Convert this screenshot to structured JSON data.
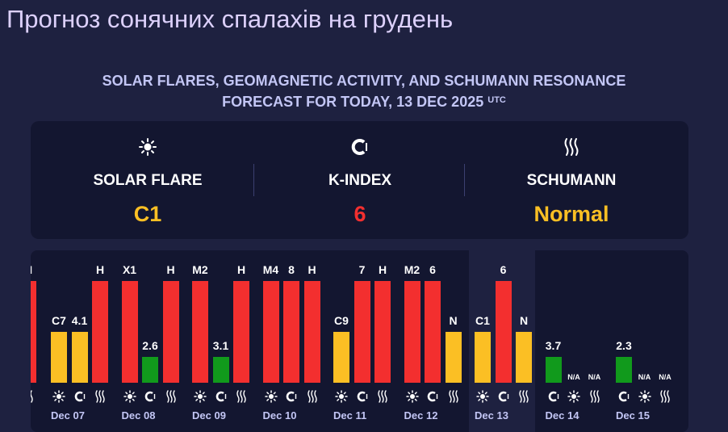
{
  "page": {
    "title": "Прогноз сонячних спалахів на грудень",
    "subtitle_line1": "SOLAR FLARES, GEOMAGNETIC ACTIVITY, AND SCHUMANN RESONANCE",
    "subtitle_line2": "FORECAST FOR TODAY, 13 DEC 2025",
    "subtitle_tz": "UTC"
  },
  "summary": {
    "solar": {
      "icon": "sun-icon",
      "label": "SOLAR FLARE",
      "value": "C1",
      "color": "#fbbf24"
    },
    "kindex": {
      "icon": "magnet-icon",
      "label": "K-INDEX",
      "value": "6",
      "color": "#f32f2f"
    },
    "schumann": {
      "icon": "waves-icon",
      "label": "SCHUMANN",
      "value": "Normal",
      "color": "#fbbf24"
    }
  },
  "colors": {
    "red": "#f32f2f",
    "yellow": "#fbbf24",
    "green": "#119a1c",
    "na": "#ffffff"
  },
  "chart_data": {
    "type": "bar",
    "categories": [
      "Dec 07",
      "Dec 08",
      "Dec 09",
      "Dec 10",
      "Dec 11",
      "Dec 12",
      "Dec 13",
      "Dec 14",
      "Dec 15"
    ],
    "level_scale": {
      "green": 0.25,
      "yellow": 0.5,
      "red": 1.0
    },
    "partial_left_bars": [
      {
        "label": "H",
        "level": "red",
        "icon": "waves-icon"
      }
    ],
    "days": [
      {
        "date": "Dec 07",
        "bars": [
          {
            "label": "C7",
            "level": "yellow",
            "icon": "sun-icon"
          },
          {
            "label": "4.1",
            "level": "yellow",
            "icon": "magnet-icon"
          },
          {
            "label": "H",
            "level": "red",
            "icon": "waves-icon"
          }
        ]
      },
      {
        "date": "Dec 08",
        "bars": [
          {
            "label": "X1",
            "level": "red",
            "icon": "sun-icon"
          },
          {
            "label": "2.6",
            "level": "green",
            "icon": "magnet-icon"
          },
          {
            "label": "H",
            "level": "red",
            "icon": "waves-icon"
          }
        ]
      },
      {
        "date": "Dec 09",
        "bars": [
          {
            "label": "M2",
            "level": "red",
            "icon": "sun-icon"
          },
          {
            "label": "3.1",
            "level": "green",
            "icon": "magnet-icon"
          },
          {
            "label": "H",
            "level": "red",
            "icon": "waves-icon"
          }
        ]
      },
      {
        "date": "Dec 10",
        "bars": [
          {
            "label": "M4",
            "level": "red",
            "icon": "sun-icon"
          },
          {
            "label": "8",
            "level": "red",
            "icon": "magnet-icon"
          },
          {
            "label": "H",
            "level": "red",
            "icon": "waves-icon"
          }
        ]
      },
      {
        "date": "Dec 11",
        "bars": [
          {
            "label": "C9",
            "level": "yellow",
            "icon": "sun-icon"
          },
          {
            "label": "7",
            "level": "red",
            "icon": "magnet-icon"
          },
          {
            "label": "H",
            "level": "red",
            "icon": "waves-icon"
          }
        ]
      },
      {
        "date": "Dec 12",
        "bars": [
          {
            "label": "M2",
            "level": "red",
            "icon": "sun-icon"
          },
          {
            "label": "6",
            "level": "red",
            "icon": "magnet-icon"
          },
          {
            "label": "N",
            "level": "yellow",
            "icon": "waves-icon"
          }
        ]
      },
      {
        "date": "Dec 13",
        "bars": [
          {
            "label": "C1",
            "level": "yellow",
            "icon": "sun-icon"
          },
          {
            "label": "6",
            "level": "red",
            "icon": "magnet-icon"
          },
          {
            "label": "N",
            "level": "yellow",
            "icon": "waves-icon"
          }
        ]
      },
      {
        "date": "Dec 14",
        "bars": [
          {
            "label": "3.7",
            "level": "green",
            "icon": "magnet-icon"
          },
          {
            "label": "N/A",
            "level": "na",
            "icon": "sun-icon"
          },
          {
            "label": "N/A",
            "level": "na",
            "icon": "waves-icon"
          }
        ]
      },
      {
        "date": "Dec 15",
        "bars": [
          {
            "label": "2.3",
            "level": "green",
            "icon": "magnet-icon"
          },
          {
            "label": "N/A",
            "level": "na",
            "icon": "sun-icon"
          },
          {
            "label": "N/A",
            "level": "na",
            "icon": "waves-icon"
          }
        ]
      }
    ]
  }
}
